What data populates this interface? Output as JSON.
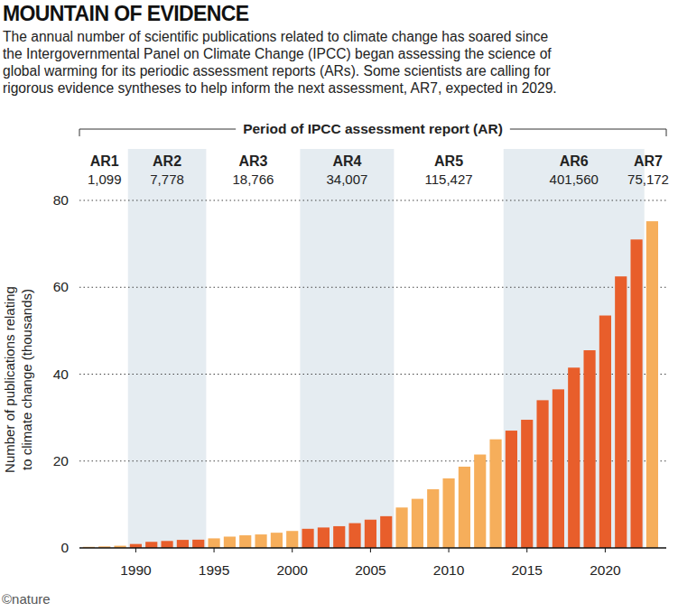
{
  "chart_data": {
    "type": "bar",
    "title": "MOUNTAIN OF EVIDENCE",
    "subtitle": [
      "The annual number of scientific publications related to climate change has soared since",
      "the Intergovernmental Panel on Climate Change (IPCC) began assessing the science of",
      "global warming for its periodic assessment reports (ARs). Some scientists are calling for",
      "rigorous evidence syntheses to help inform the next assessment, AR7, expected in 2029."
    ],
    "period_header": "Period of IPCC assessment report (AR)",
    "periods": [
      {
        "name": "AR1",
        "total": "1,099",
        "start": 1987,
        "end": 1989
      },
      {
        "name": "AR2",
        "total": "7,778",
        "start": 1990,
        "end": 1994
      },
      {
        "name": "AR3",
        "total": "18,766",
        "start": 1995,
        "end": 2000
      },
      {
        "name": "AR4",
        "total": "34,007",
        "start": 2001,
        "end": 2006
      },
      {
        "name": "AR5",
        "total": "115,427",
        "start": 2007,
        "end": 2013
      },
      {
        "name": "AR6",
        "total": "401,560",
        "start": 2014,
        "end": 2022
      },
      {
        "name": "AR7",
        "total": "75,172",
        "start": 2023,
        "end": 2023
      }
    ],
    "x": [
      1987,
      1988,
      1989,
      1990,
      1991,
      1992,
      1993,
      1994,
      1995,
      1996,
      1997,
      1998,
      1999,
      2000,
      2001,
      2002,
      2003,
      2004,
      2005,
      2006,
      2007,
      2008,
      2009,
      2010,
      2011,
      2012,
      2013,
      2014,
      2015,
      2016,
      2017,
      2018,
      2019,
      2020,
      2021,
      2022,
      2023
    ],
    "values": [
      0.25,
      0.35,
      0.5,
      0.9,
      1.4,
      1.6,
      1.85,
      1.9,
      2.2,
      2.6,
      2.9,
      3.1,
      3.5,
      3.9,
      4.4,
      4.7,
      5.0,
      5.7,
      6.5,
      7.3,
      9.3,
      11.3,
      13.5,
      16.0,
      18.7,
      21.5,
      25.0,
      27.0,
      29.5,
      34.0,
      36.5,
      41.5,
      45.5,
      53.5,
      62.5,
      71.0,
      75.2
    ],
    "colors": [
      "#f6ae5b",
      "#f6ae5b",
      "#f6ae5b",
      "#e85e2b",
      "#e85e2b",
      "#e85e2b",
      "#e85e2b",
      "#e85e2b",
      "#f6ae5b",
      "#f6ae5b",
      "#f6ae5b",
      "#f6ae5b",
      "#f6ae5b",
      "#f6ae5b",
      "#e85e2b",
      "#e85e2b",
      "#e85e2b",
      "#e85e2b",
      "#e85e2b",
      "#e85e2b",
      "#f6ae5b",
      "#f6ae5b",
      "#f6ae5b",
      "#f6ae5b",
      "#f6ae5b",
      "#f6ae5b",
      "#f6ae5b",
      "#e85e2b",
      "#e85e2b",
      "#e85e2b",
      "#e85e2b",
      "#e85e2b",
      "#e85e2b",
      "#e85e2b",
      "#e85e2b",
      "#e85e2b",
      "#f6ae5b"
    ],
    "xlim": [
      1986.4,
      2023.9
    ],
    "xticks": [
      1990,
      1995,
      2000,
      2005,
      2010,
      2015,
      2020
    ],
    "ylim": [
      0,
      80
    ],
    "yticks": [
      0,
      20,
      40,
      60,
      80
    ],
    "y_label": [
      "Number of publications relating",
      "to climate change (thousands)"
    ],
    "grid": true,
    "source": "©nature"
  }
}
